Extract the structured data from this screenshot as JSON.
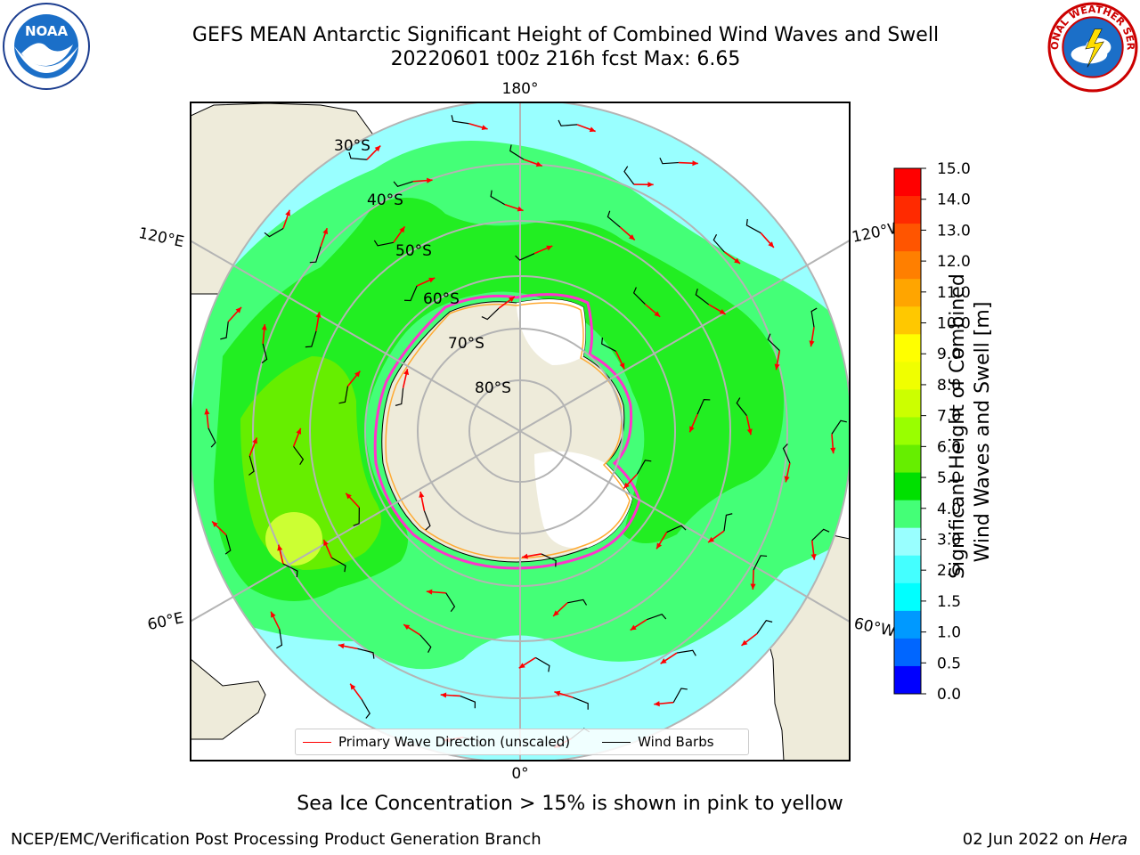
{
  "header": {
    "title_line1": "GEFS MEAN Antarctic Significant Height of Combined Wind Waves and Swell",
    "title_line2": "20220601 t00z 216h fcst   Max: 6.65"
  },
  "logos": {
    "left": "noaa-logo",
    "left_text": "NOAA",
    "right": "nws-logo",
    "right_text": "NATIONAL WEATHER SERVICE"
  },
  "map": {
    "projection": "south-polar-stereographic",
    "longitude_labels": {
      "top": "180°",
      "bottom": "0°",
      "left_upper": "120°E",
      "left_lower": "60°E",
      "right_upper": "120°W",
      "right_lower": "60°W"
    },
    "latitude_labels": [
      "30°S",
      "40°S",
      "50°S",
      "60°S",
      "70°S",
      "80°S"
    ],
    "colors": {
      "land": "#eeebda",
      "ocean_low": "#99ffff",
      "ocean_mid": "#66ff88",
      "ocean_high": "#22ee22",
      "ocean_peak": "#ccff33",
      "ice_edge": "#ff33cc",
      "arrows": "#ff0000",
      "barbs": "#000000",
      "grid": "#b4b4b4"
    }
  },
  "colorbar": {
    "title_line1": "Significant Height of Combined",
    "title_line2": "Wind Waves and Swell [m]",
    "ticks": [
      "15.0",
      "14.0",
      "13.0",
      "12.0",
      "11.0",
      "10.0",
      "9.0",
      "8.0",
      "7.0",
      "6.0",
      "5.0",
      "4.0",
      "3.0",
      "2.0",
      "1.5",
      "1.0",
      "0.5",
      "0.0"
    ],
    "colors_top_to_bottom": [
      "#ff0000",
      "#ff2a00",
      "#ff5500",
      "#ff7f00",
      "#ffa500",
      "#ffc800",
      "#ffff00",
      "#f0ff00",
      "#ccff00",
      "#99ff00",
      "#66ee00",
      "#00e000",
      "#44ff77",
      "#99ffff",
      "#44ffff",
      "#00ffff",
      "#0099ff",
      "#0066ff",
      "#0000ff"
    ]
  },
  "legend": {
    "primary_wave": "Primary Wave Direction (unscaled)",
    "wind_barbs": "Wind Barbs"
  },
  "caption": "Sea Ice Concentration > 15% is shown in pink to yellow",
  "footer": {
    "left": "NCEP/EMC/Verification Post Processing Product Generation Branch",
    "right_date": "02 Jun 2022 on",
    "right_host": "Hera"
  }
}
